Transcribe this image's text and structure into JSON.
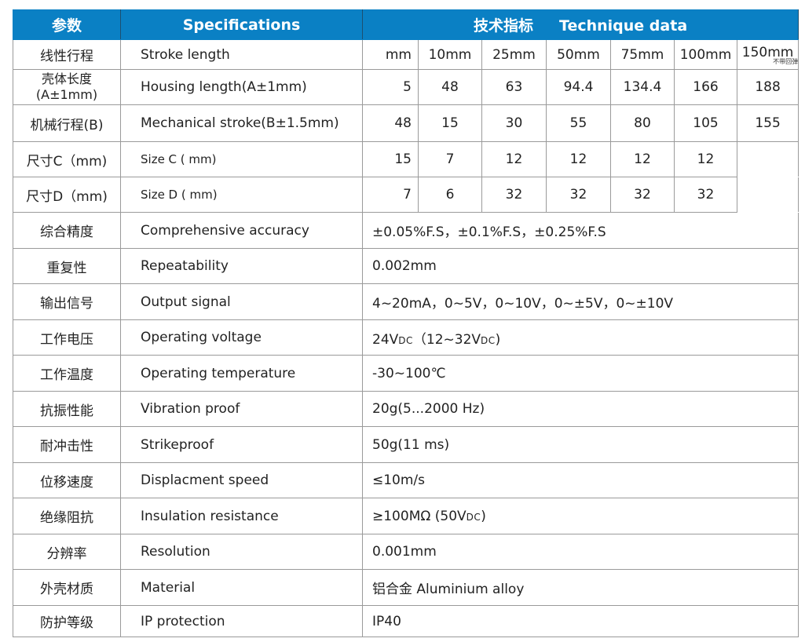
{
  "header": {
    "col_cn": "参数",
    "col_en": "Specifications",
    "col_data_cn": "技术指标",
    "col_data_en": "Technique data"
  },
  "colors": {
    "header_bg": "#0a80c4",
    "header_text": "#ffffff"
  },
  "multi_rows": [
    {
      "cn": "线性行程",
      "en": "Stroke length",
      "values": [
        "mm",
        "10mm",
        "25mm",
        "50mm",
        "75mm",
        "100mm",
        "150mm"
      ],
      "note": "不带回弹"
    },
    {
      "cn": "壳体长度\n(A±1mm)",
      "en": "Housing length(A±1mm)",
      "values": [
        "5",
        "48",
        "63",
        "94.4",
        "134.4",
        "166",
        "188"
      ]
    },
    {
      "cn": "机械行程(B)",
      "en": "Mechanical stroke(B±1.5mm)",
      "values": [
        "48",
        "15",
        "30",
        "55",
        "80",
        "105",
        "155"
      ]
    },
    {
      "cn": "尺寸C（mm)",
      "en": "Size C ( mm)",
      "values": [
        "15",
        "7",
        "12",
        "12",
        "12",
        "12",
        ""
      ]
    },
    {
      "cn": "尺寸D（mm)",
      "en": "Size D ( mm)",
      "values": [
        "7",
        "6",
        "32",
        "32",
        "32",
        "32",
        ""
      ]
    }
  ],
  "single_rows": [
    {
      "cn": "综合精度",
      "en": "Comprehensive accuracy",
      "value": [
        "±0.05%F.S，±0.1%F.S，±0.25%F.S"
      ]
    },
    {
      "cn": "重复性",
      "en": "Repeatability",
      "value": [
        "0.002mm"
      ]
    },
    {
      "cn": "输出信号",
      "en": "Output signal",
      "value": [
        "4~20mA，0~5V，0~10V，0~±5V，0~±10V"
      ]
    },
    {
      "cn": "工作电压",
      "en": "Operating voltage",
      "value": [
        "24V",
        "DC",
        "（12~32V",
        "DC",
        ")"
      ]
    },
    {
      "cn": "工作温度",
      "en": "Operating temperature",
      "value": [
        "-30~100℃"
      ]
    },
    {
      "cn": "抗振性能",
      "en": "Vibration proof",
      "value": [
        "20g(5...2000 Hz)"
      ]
    },
    {
      "cn": "耐冲击性",
      "en": "Strikeproof",
      "value": [
        "50g(11 ms)"
      ]
    },
    {
      "cn": "位移速度",
      "en": "Displacment speed",
      "value": [
        "≤10m/s"
      ]
    },
    {
      "cn": "绝缘阻抗",
      "en": "Insulation resistance",
      "value": [
        "≥100MΩ (50V",
        "DC",
        ")"
      ]
    },
    {
      "cn": "分辨率",
      "en": "Resolution",
      "value": [
        "0.001mm"
      ]
    },
    {
      "cn": "外壳材质",
      "en": "Material",
      "value": [
        "铝合金  Aluminium alloy"
      ]
    },
    {
      "cn": "防护等级",
      "en": "IP  protection",
      "value": [
        "IP40"
      ]
    }
  ]
}
